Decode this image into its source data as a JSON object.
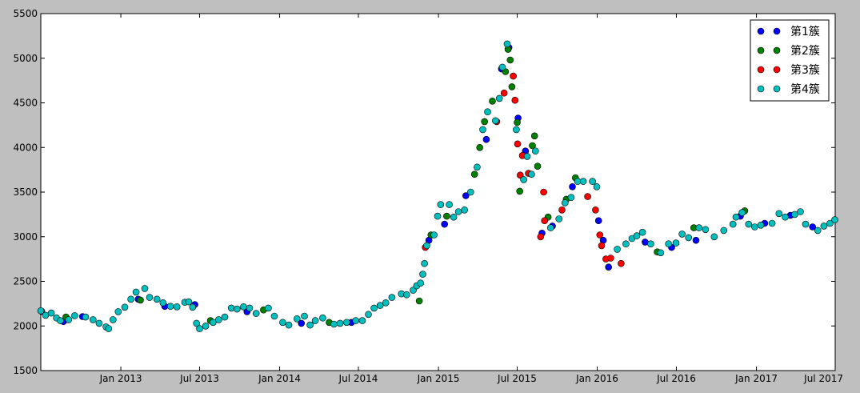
{
  "chart_data": {
    "type": "scatter",
    "title": "",
    "xlabel": "",
    "ylabel": "",
    "x_range": [
      "2012-07-01",
      "2017-07-01"
    ],
    "ylim": [
      1500,
      5500
    ],
    "y_ticks": [
      1500,
      2000,
      2500,
      3000,
      3500,
      4000,
      4500,
      5000,
      5500
    ],
    "x_ticks": [
      {
        "date": "2013-01-01",
        "label": "Jan 2013"
      },
      {
        "date": "2013-07-01",
        "label": "Jul 2013"
      },
      {
        "date": "2014-01-01",
        "label": "Jan 2014"
      },
      {
        "date": "2014-07-01",
        "label": "Jul 2014"
      },
      {
        "date": "2015-01-01",
        "label": "Jan 2015"
      },
      {
        "date": "2015-07-01",
        "label": "Jul 2015"
      },
      {
        "date": "2016-01-01",
        "label": "Jan 2016"
      },
      {
        "date": "2016-07-01",
        "label": "Jul 2016"
      },
      {
        "date": "2017-01-01",
        "label": "Jan 2017"
      },
      {
        "date": "2017-07-01",
        "label": "Jul 2017"
      }
    ],
    "grid": false,
    "legend_position": "top-right",
    "series": [
      {
        "name": "第1簇",
        "color": "#0000ff",
        "points": [
          [
            "2012-07-03",
            2165
          ],
          [
            "2012-08-22",
            2050
          ],
          [
            "2012-10-05",
            2105
          ],
          [
            "2013-02-10",
            2300
          ],
          [
            "2013-04-12",
            2220
          ],
          [
            "2013-06-20",
            2240
          ],
          [
            "2013-10-18",
            2160
          ],
          [
            "2014-02-20",
            2030
          ],
          [
            "2014-06-15",
            2040
          ],
          [
            "2014-12-10",
            2960
          ],
          [
            "2015-01-15",
            3140
          ],
          [
            "2015-03-05",
            3460
          ],
          [
            "2015-04-21",
            4090
          ],
          [
            "2015-05-26",
            4880
          ],
          [
            "2015-06-12",
            5120
          ],
          [
            "2015-07-03",
            4330
          ],
          [
            "2015-07-20",
            3960
          ],
          [
            "2015-08-27",
            3040
          ],
          [
            "2015-09-20",
            3120
          ],
          [
            "2015-11-05",
            3560
          ],
          [
            "2016-01-04",
            3180
          ],
          [
            "2016-01-15",
            2960
          ],
          [
            "2016-01-27",
            2660
          ],
          [
            "2016-04-20",
            2940
          ],
          [
            "2016-06-20",
            2880
          ],
          [
            "2016-08-15",
            2960
          ],
          [
            "2016-11-25",
            3230
          ],
          [
            "2017-01-20",
            3150
          ],
          [
            "2017-03-20",
            3240
          ],
          [
            "2017-05-10",
            3110
          ]
        ]
      },
      {
        "name": "第2簇",
        "color": "#008000",
        "points": [
          [
            "2012-08-28",
            2100
          ],
          [
            "2013-02-15",
            2290
          ],
          [
            "2013-07-26",
            2060
          ],
          [
            "2013-11-25",
            2180
          ],
          [
            "2014-04-25",
            2040
          ],
          [
            "2014-11-18",
            2280
          ],
          [
            "2014-12-15",
            3020
          ],
          [
            "2015-01-20",
            3230
          ],
          [
            "2015-03-25",
            3700
          ],
          [
            "2015-04-06",
            4000
          ],
          [
            "2015-04-17",
            4290
          ],
          [
            "2015-05-05",
            4520
          ],
          [
            "2015-06-04",
            4850
          ],
          [
            "2015-06-10",
            5100
          ],
          [
            "2015-06-15",
            4980
          ],
          [
            "2015-06-19",
            4680
          ],
          [
            "2015-07-01",
            4280
          ],
          [
            "2015-07-07",
            3510
          ],
          [
            "2015-08-05",
            4020
          ],
          [
            "2015-08-10",
            4130
          ],
          [
            "2015-08-17",
            3790
          ],
          [
            "2015-09-10",
            3220
          ],
          [
            "2015-10-22",
            3420
          ],
          [
            "2015-11-12",
            3660
          ],
          [
            "2016-05-18",
            2830
          ],
          [
            "2016-08-10",
            3100
          ],
          [
            "2016-12-05",
            3290
          ]
        ]
      },
      {
        "name": "第3簇",
        "color": "#ff0000",
        "points": [
          [
            "2014-12-02",
            2880
          ],
          [
            "2015-05-15",
            4290
          ],
          [
            "2015-06-01",
            4610
          ],
          [
            "2015-06-22",
            4800
          ],
          [
            "2015-06-26",
            4530
          ],
          [
            "2015-07-02",
            4040
          ],
          [
            "2015-07-08",
            3690
          ],
          [
            "2015-07-13",
            3910
          ],
          [
            "2015-07-27",
            3710
          ],
          [
            "2015-08-24",
            3000
          ],
          [
            "2015-09-02",
            3180
          ],
          [
            "2015-10-12",
            3300
          ],
          [
            "2015-12-10",
            3450
          ],
          [
            "2015-12-28",
            3300
          ],
          [
            "2016-01-07",
            3020
          ],
          [
            "2016-01-11",
            2900
          ],
          [
            "2016-01-21",
            2750
          ],
          [
            "2016-02-01",
            2760
          ],
          [
            "2016-02-25",
            2700
          ],
          [
            "2015-08-31",
            3500
          ]
        ]
      },
      {
        "name": "第4簇",
        "color": "#00bfbf",
        "points": [
          [
            "2012-07-01",
            2170
          ],
          [
            "2012-07-12",
            2120
          ],
          [
            "2012-07-25",
            2145
          ],
          [
            "2012-08-06",
            2090
          ],
          [
            "2012-08-15",
            2060
          ],
          [
            "2012-09-03",
            2070
          ],
          [
            "2012-09-17",
            2115
          ],
          [
            "2012-10-12",
            2100
          ],
          [
            "2012-10-29",
            2070
          ],
          [
            "2012-11-12",
            2030
          ],
          [
            "2012-11-28",
            1990
          ],
          [
            "2012-12-04",
            1970
          ],
          [
            "2012-12-14",
            2070
          ],
          [
            "2012-12-26",
            2160
          ],
          [
            "2013-01-10",
            2210
          ],
          [
            "2013-01-24",
            2300
          ],
          [
            "2013-02-05",
            2380
          ],
          [
            "2013-02-25",
            2420
          ],
          [
            "2013-03-08",
            2320
          ],
          [
            "2013-03-25",
            2300
          ],
          [
            "2013-04-08",
            2260
          ],
          [
            "2013-04-25",
            2220
          ],
          [
            "2013-05-10",
            2215
          ],
          [
            "2013-05-28",
            2265
          ],
          [
            "2013-06-06",
            2270
          ],
          [
            "2013-06-15",
            2210
          ],
          [
            "2013-06-24",
            2030
          ],
          [
            "2013-07-01",
            1970
          ],
          [
            "2013-07-15",
            2000
          ],
          [
            "2013-08-01",
            2040
          ],
          [
            "2013-08-14",
            2070
          ],
          [
            "2013-08-28",
            2100
          ],
          [
            "2013-09-12",
            2200
          ],
          [
            "2013-09-25",
            2190
          ],
          [
            "2013-10-10",
            2215
          ],
          [
            "2013-10-24",
            2200
          ],
          [
            "2013-11-08",
            2140
          ],
          [
            "2013-12-06",
            2200
          ],
          [
            "2013-12-20",
            2110
          ],
          [
            "2014-01-08",
            2040
          ],
          [
            "2014-01-22",
            2010
          ],
          [
            "2014-02-10",
            2080
          ],
          [
            "2014-02-27",
            2110
          ],
          [
            "2014-03-12",
            2010
          ],
          [
            "2014-03-24",
            2060
          ],
          [
            "2014-04-10",
            2090
          ],
          [
            "2014-05-06",
            2020
          ],
          [
            "2014-05-20",
            2030
          ],
          [
            "2014-06-04",
            2040
          ],
          [
            "2014-06-25",
            2060
          ],
          [
            "2014-07-10",
            2060
          ],
          [
            "2014-07-24",
            2130
          ],
          [
            "2014-08-06",
            2200
          ],
          [
            "2014-08-20",
            2230
          ],
          [
            "2014-09-02",
            2260
          ],
          [
            "2014-09-16",
            2320
          ],
          [
            "2014-10-08",
            2360
          ],
          [
            "2014-10-20",
            2350
          ],
          [
            "2014-11-04",
            2400
          ],
          [
            "2014-11-12",
            2450
          ],
          [
            "2014-11-21",
            2480
          ],
          [
            "2014-11-26",
            2580
          ],
          [
            "2014-11-30",
            2700
          ],
          [
            "2014-12-05",
            2900
          ],
          [
            "2014-12-22",
            3020
          ],
          [
            "2014-12-30",
            3230
          ],
          [
            "2015-01-06",
            3360
          ],
          [
            "2015-01-26",
            3360
          ],
          [
            "2015-02-05",
            3220
          ],
          [
            "2015-02-16",
            3280
          ],
          [
            "2015-03-02",
            3300
          ],
          [
            "2015-03-16",
            3500
          ],
          [
            "2015-03-31",
            3780
          ],
          [
            "2015-04-13",
            4200
          ],
          [
            "2015-04-24",
            4400
          ],
          [
            "2015-05-12",
            4300
          ],
          [
            "2015-05-21",
            4550
          ],
          [
            "2015-05-28",
            4900
          ],
          [
            "2015-06-08",
            5160
          ],
          [
            "2015-06-29",
            4200
          ],
          [
            "2015-07-16",
            3640
          ],
          [
            "2015-07-24",
            3900
          ],
          [
            "2015-08-03",
            3700
          ],
          [
            "2015-08-12",
            3960
          ],
          [
            "2015-09-16",
            3100
          ],
          [
            "2015-10-05",
            3200
          ],
          [
            "2015-10-19",
            3380
          ],
          [
            "2015-11-02",
            3440
          ],
          [
            "2015-11-17",
            3620
          ],
          [
            "2015-11-30",
            3620
          ],
          [
            "2015-12-21",
            3620
          ],
          [
            "2015-12-31",
            3560
          ],
          [
            "2016-02-16",
            2860
          ],
          [
            "2016-03-07",
            2920
          ],
          [
            "2016-03-21",
            2980
          ],
          [
            "2016-04-01",
            3010
          ],
          [
            "2016-04-14",
            3050
          ],
          [
            "2016-05-03",
            2920
          ],
          [
            "2016-05-26",
            2820
          ],
          [
            "2016-06-13",
            2920
          ],
          [
            "2016-06-30",
            2930
          ],
          [
            "2016-07-14",
            3030
          ],
          [
            "2016-07-29",
            2990
          ],
          [
            "2016-08-22",
            3100
          ],
          [
            "2016-09-06",
            3080
          ],
          [
            "2016-09-26",
            3000
          ],
          [
            "2016-10-18",
            3070
          ],
          [
            "2016-11-08",
            3140
          ],
          [
            "2016-11-15",
            3220
          ],
          [
            "2016-11-29",
            3270
          ],
          [
            "2016-12-14",
            3140
          ],
          [
            "2016-12-28",
            3110
          ],
          [
            "2017-01-11",
            3130
          ],
          [
            "2017-02-06",
            3150
          ],
          [
            "2017-02-22",
            3260
          ],
          [
            "2017-03-08",
            3220
          ],
          [
            "2017-03-30",
            3250
          ],
          [
            "2017-04-12",
            3280
          ],
          [
            "2017-04-24",
            3140
          ],
          [
            "2017-05-22",
            3070
          ],
          [
            "2017-06-05",
            3120
          ],
          [
            "2017-06-19",
            3150
          ],
          [
            "2017-06-30",
            3190
          ]
        ]
      }
    ]
  }
}
